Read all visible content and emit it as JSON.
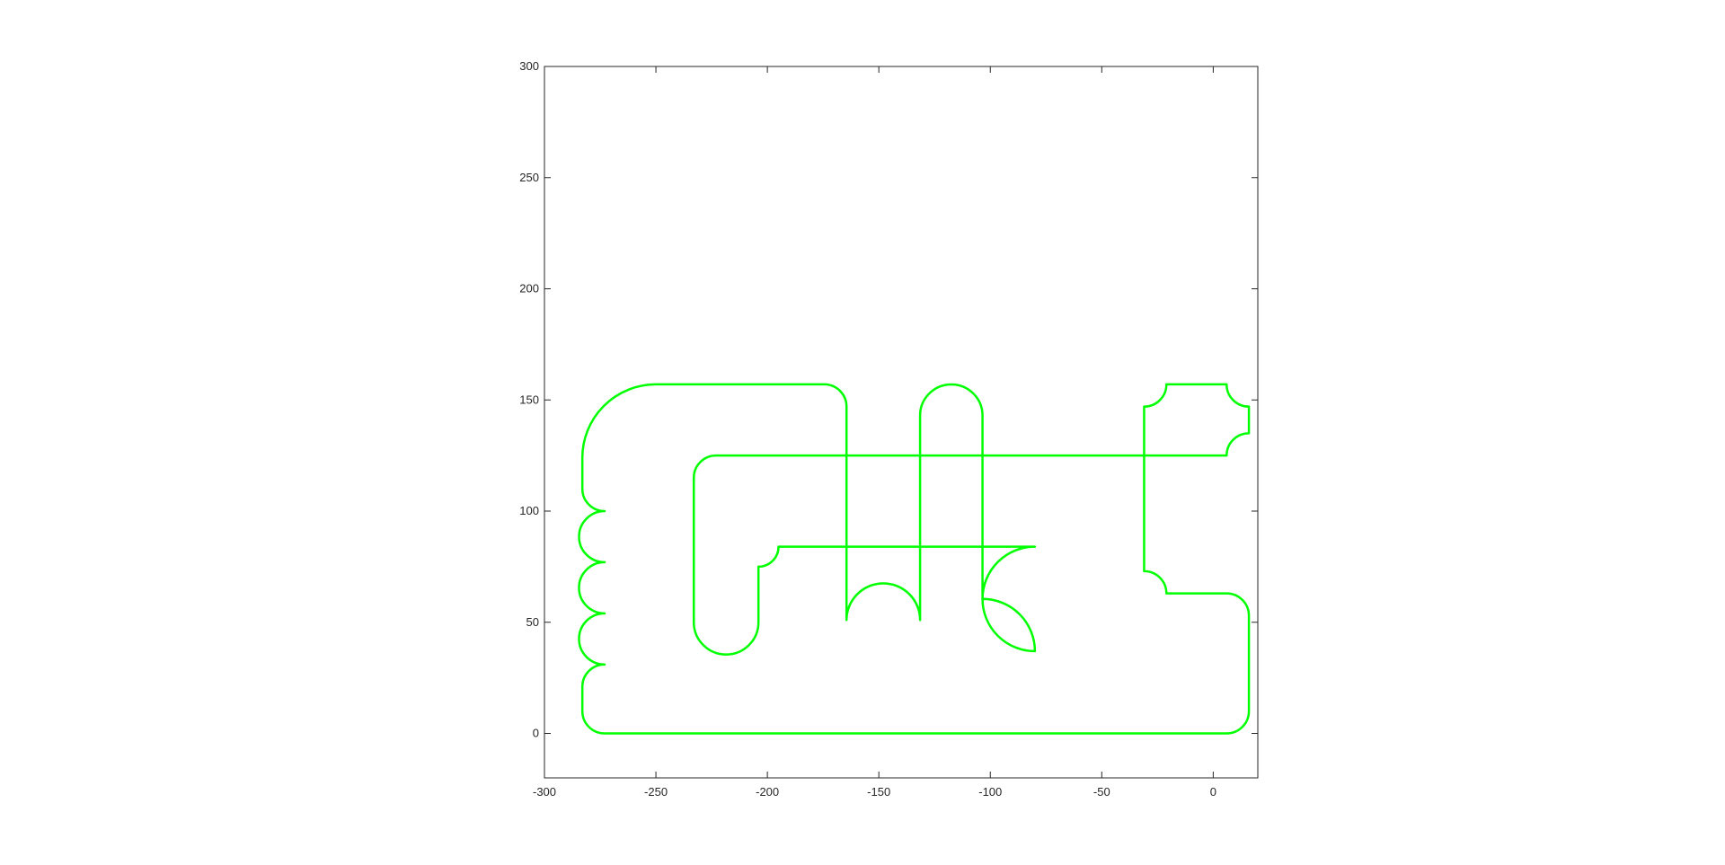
{
  "chart_data": {
    "type": "line",
    "title": "",
    "xlabel": "",
    "ylabel": "",
    "xlim": [
      -300,
      20
    ],
    "ylim": [
      -20,
      300
    ],
    "grid": false,
    "x_ticks": [
      -300,
      -250,
      -200,
      -150,
      -100,
      -50,
      0
    ],
    "y_ticks": [
      0,
      50,
      100,
      150,
      200,
      250,
      300
    ],
    "x_tick_labels": [
      "-300",
      "-250",
      "-200",
      "-150",
      "-100",
      "-50",
      "0"
    ],
    "y_tick_labels": [
      "0",
      "50",
      "100",
      "150",
      "200",
      "250",
      "300"
    ],
    "series": [
      {
        "color": "#00ff00",
        "closed": true,
        "path": [
          [
            "M",
            -273,
            0
          ],
          [
            "L",
            6,
            0
          ],
          [
            "A",
            10,
            16,
            10
          ],
          [
            "L",
            16,
            53
          ],
          [
            "A",
            10,
            6,
            63
          ],
          [
            "L",
            -21,
            63
          ],
          [
            "A",
            10,
            -31,
            73
          ],
          [
            "L",
            -31,
            147
          ],
          [
            "A",
            10,
            -21,
            157
          ],
          [
            "L",
            6,
            157
          ],
          [
            "A",
            10,
            16,
            147
          ],
          [
            "L",
            16,
            135
          ],
          [
            "A",
            10,
            6,
            125
          ],
          [
            "L",
            -223,
            125
          ],
          [
            "A",
            10,
            -233,
            115
          ],
          [
            "L",
            -233,
            50
          ],
          [
            "A",
            14.5,
            -204,
            50
          ],
          [
            "L",
            -204,
            75
          ],
          [
            "A",
            9,
            -195,
            84
          ],
          [
            "L",
            -80,
            84
          ],
          [
            "A",
            23.5,
            -80,
            37
          ],
          [
            "A",
            23.5,
            -103.5,
            60.5
          ],
          [
            "L",
            -103.5,
            143
          ],
          [
            "A",
            14,
            -131.5,
            143
          ],
          [
            "L",
            -131.5,
            51
          ],
          [
            "A",
            16.5,
            -164.5,
            51
          ],
          [
            "L",
            -164.5,
            147
          ],
          [
            "A",
            10,
            -174.5,
            157
          ],
          [
            "L",
            -250,
            157
          ],
          [
            "A",
            33,
            -283,
            124
          ],
          [
            "L",
            -283,
            110
          ],
          [
            "A",
            10,
            -273,
            100
          ],
          [
            "A",
            11.5,
            -273,
            77
          ],
          [
            "A",
            11.5,
            -273,
            54
          ],
          [
            "A",
            11.5,
            -273,
            31
          ],
          [
            "A",
            10,
            -283,
            21
          ],
          [
            "L",
            -283,
            10
          ],
          [
            "A",
            10,
            -273,
            0
          ]
        ]
      }
    ]
  }
}
